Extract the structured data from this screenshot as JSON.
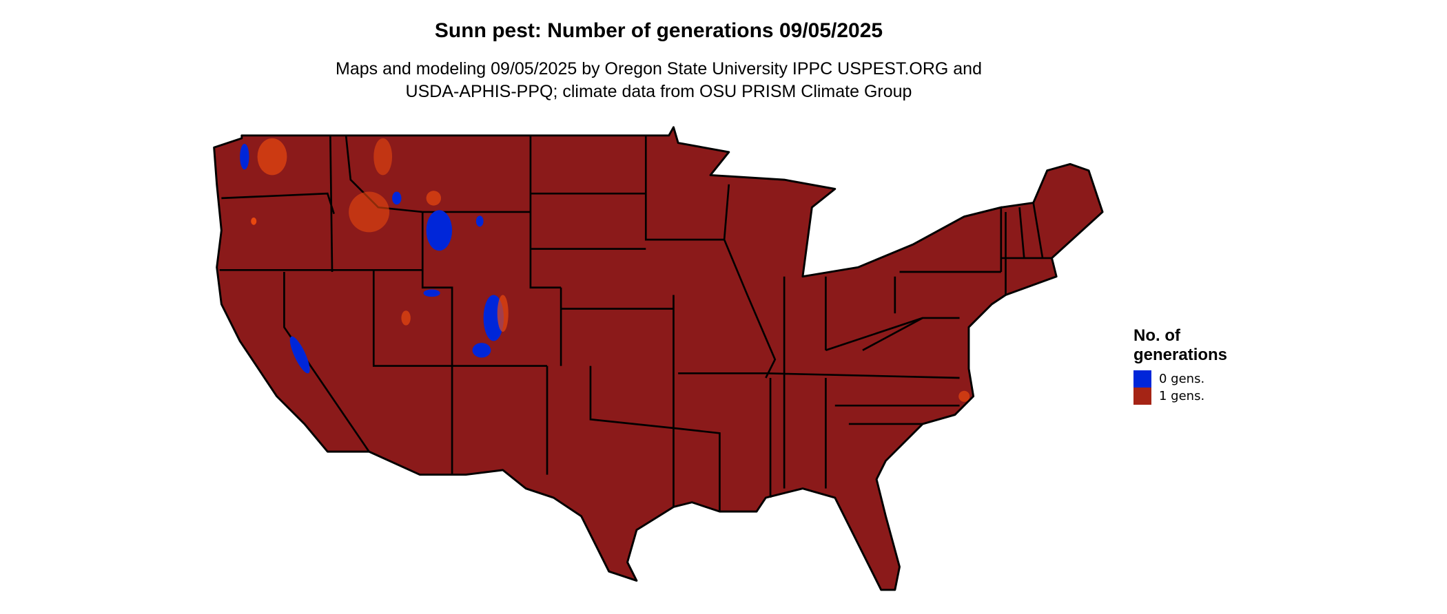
{
  "title": "Sunn pest: Number of generations 09/05/2025",
  "subtitle_lines": [
    "Maps and modeling 09/05/2025 by Oregon State University IPPC USPEST.ORG and",
    "USDA-APHIS-PPQ; climate data from OSU PRISM Climate Group"
  ],
  "map": {
    "region": "Contiguous United States",
    "fill_color": "#8B1A1A",
    "border_color": "#000000",
    "highlight_colors": {
      "zero_gens": "#0026D9",
      "elevation_specks": "#E8480F"
    }
  },
  "legend": {
    "title_lines": [
      "No. of",
      "generations"
    ],
    "items": [
      {
        "label": "0 gens.",
        "color": "#0026D9"
      },
      {
        "label": "1 gens.",
        "color": "#A52415"
      }
    ]
  }
}
